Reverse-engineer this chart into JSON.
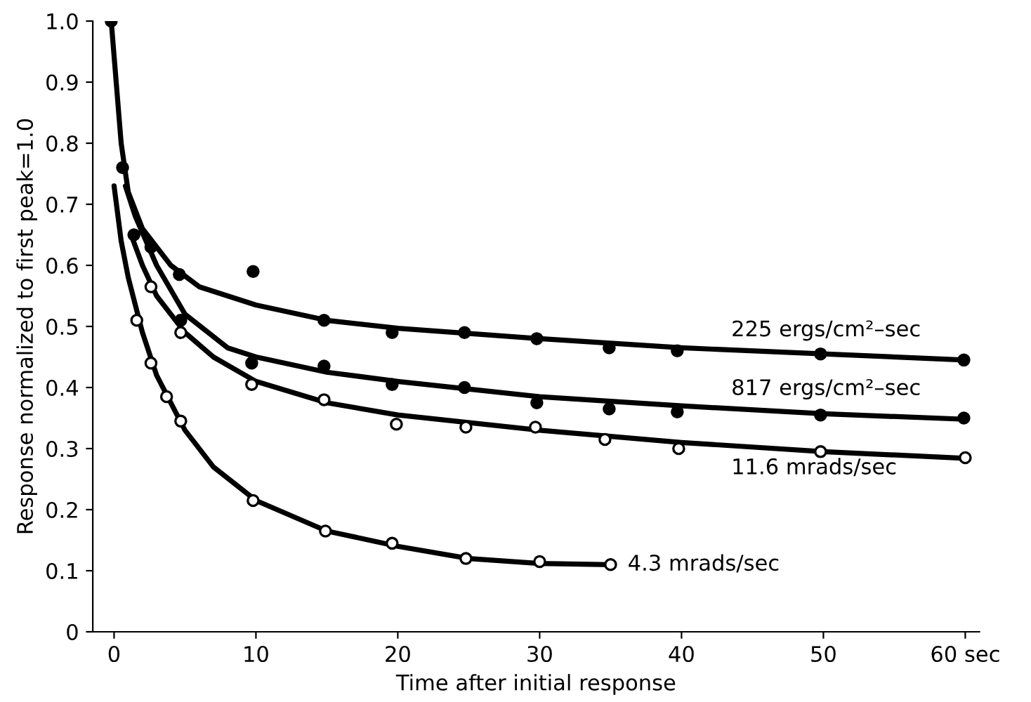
{
  "chart_data": {
    "type": "scatter",
    "xlabel": "Time after initial response",
    "ylabel": "Response normalized to first peak=1.0",
    "xlim": [
      -1.5,
      61
    ],
    "ylim": [
      0,
      1.0
    ],
    "xticks": [
      0,
      10,
      20,
      30,
      40,
      50,
      {
        "value": 60,
        "label": "60 sec"
      }
    ],
    "yticks": [
      0,
      {
        "value": 0.1,
        "label": "0.1"
      },
      {
        "value": 0.2,
        "label": "0.2"
      },
      {
        "value": 0.3,
        "label": "0.3"
      },
      {
        "value": 0.4,
        "label": "0.4"
      },
      {
        "value": 0.5,
        "label": "0.5"
      },
      {
        "value": 0.6,
        "label": "0.6"
      },
      {
        "value": 0.7,
        "label": "0.7"
      },
      {
        "value": 0.8,
        "label": "0.8"
      },
      {
        "value": 0.9,
        "label": "0.9"
      },
      {
        "value": 1.0,
        "label": "1.0"
      }
    ],
    "grid": false,
    "legend": false,
    "series": [
      {
        "marker": "circle",
        "color": "#000000",
        "x": [
          -0.2,
          0.6,
          4.6,
          9.8,
          14.8,
          19.6,
          24.7,
          29.8,
          34.9,
          39.7,
          49.8,
          59.9
        ],
        "values": [
          1.0,
          0.76,
          0.585,
          0.59,
          0.51,
          0.49,
          0.49,
          0.48,
          0.465,
          0.46,
          0.455,
          0.445
        ]
      },
      {
        "marker": "circle",
        "color": "#000000",
        "x": [
          1.4,
          2.6,
          4.7,
          9.7,
          14.8,
          19.6,
          24.7,
          29.8,
          34.9,
          39.7,
          49.8,
          59.9
        ],
        "values": [
          0.65,
          0.63,
          0.51,
          0.44,
          0.435,
          0.405,
          0.4,
          0.375,
          0.365,
          0.36,
          0.355,
          0.35
        ]
      },
      {
        "marker": "circle",
        "color": "#ffffff",
        "x": [
          2.6,
          4.7,
          9.7,
          14.8,
          19.9,
          24.8,
          29.7,
          34.6,
          39.8,
          49.8,
          60.0
        ],
        "values": [
          0.565,
          0.49,
          0.405,
          0.38,
          0.34,
          0.335,
          0.335,
          0.315,
          0.3,
          0.295,
          0.285
        ]
      },
      {
        "marker": "circle",
        "color": "#ffffff",
        "x": [
          1.6,
          2.6,
          3.7,
          4.7,
          9.8,
          14.9,
          19.6,
          24.8,
          30.0,
          35.0
        ],
        "values": [
          0.51,
          0.44,
          0.385,
          0.345,
          0.215,
          0.165,
          0.145,
          0.12,
          0.115,
          0.11
        ]
      },
      {
        "type": "line",
        "name": "225 ergs/cm²–sec",
        "marker": "none",
        "color": "#000000",
        "line_style": "solid",
        "x": [
          -0.2,
          0.5,
          1,
          2,
          4,
          6,
          10,
          15,
          20,
          30,
          40,
          50,
          60
        ],
        "values": [
          1.0,
          0.8,
          0.72,
          0.66,
          0.6,
          0.565,
          0.535,
          0.51,
          0.497,
          0.48,
          0.465,
          0.455,
          0.445
        ]
      },
      {
        "type": "line",
        "name": "817 ergs/cm²–sec",
        "marker": "none",
        "color": "#000000",
        "line_style": "solid",
        "x": [
          0.8,
          1.5,
          3,
          5,
          8,
          10,
          15,
          20,
          30,
          40,
          50,
          60
        ],
        "values": [
          0.73,
          0.68,
          0.6,
          0.52,
          0.465,
          0.45,
          0.425,
          0.41,
          0.385,
          0.37,
          0.357,
          0.348
        ]
      },
      {
        "type": "line",
        "name": "11.6 mrads/sec",
        "marker": "none",
        "color": "#000000",
        "line_style": "solid",
        "x": [
          1.2,
          2,
          3,
          5,
          7,
          10,
          15,
          20,
          30,
          40,
          50,
          60
        ],
        "values": [
          0.65,
          0.6,
          0.55,
          0.49,
          0.45,
          0.41,
          0.375,
          0.355,
          0.33,
          0.31,
          0.295,
          0.284
        ]
      },
      {
        "type": "line",
        "name": "4.3 mrads/sec",
        "marker": "none",
        "color": "#000000",
        "line_style": "solid",
        "x": [
          0,
          0.5,
          1,
          2,
          3,
          5,
          7,
          10,
          15,
          20,
          25,
          30,
          35
        ],
        "values": [
          0.73,
          0.64,
          0.58,
          0.49,
          0.42,
          0.33,
          0.27,
          0.215,
          0.165,
          0.14,
          0.12,
          0.112,
          0.11
        ]
      }
    ]
  }
}
